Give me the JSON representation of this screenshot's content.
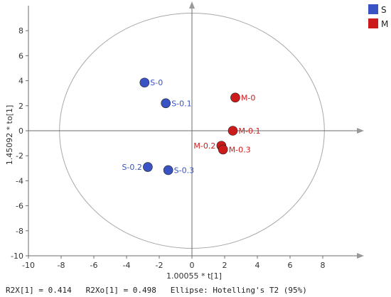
{
  "chart_data": {
    "type": "scatter",
    "xlabel": "1.00055 * t[1]",
    "ylabel": "1.45092 * to[1]",
    "xlim": [
      -10,
      10
    ],
    "ylim": [
      -10,
      10
    ],
    "x_ticks": [
      -10,
      -8,
      -6,
      -4,
      -2,
      0,
      2,
      4,
      6,
      8
    ],
    "y_ticks": [
      -10,
      -8,
      -6,
      -4,
      -2,
      0,
      2,
      4,
      6,
      8
    ],
    "ellipse": {
      "cx": 0,
      "cy": 0,
      "rx": 8.1,
      "ry": 9.4
    },
    "series": [
      {
        "name": "S",
        "color": "#3a53c4",
        "points": [
          {
            "x": -2.9,
            "y": 3.85,
            "label": "S-0"
          },
          {
            "x": -1.6,
            "y": 2.2,
            "label": "S-0.1"
          },
          {
            "x": -2.7,
            "y": -2.9,
            "label": "S-0.2"
          },
          {
            "x": -1.45,
            "y": -3.15,
            "label": "S-0.3"
          }
        ]
      },
      {
        "name": "M",
        "color": "#cc1b1b",
        "points": [
          {
            "x": 2.65,
            "y": 2.65,
            "label": "M-0"
          },
          {
            "x": 2.5,
            "y": 0.0,
            "label": "M-0.1"
          },
          {
            "x": 1.8,
            "y": -1.2,
            "label": "M-0.2"
          },
          {
            "x": 1.9,
            "y": -1.5,
            "label": "M-0.3"
          }
        ]
      }
    ],
    "legend": [
      "S",
      "M"
    ],
    "footer": "R2X[1] = 0.414   R2Xo[1] = 0.498   Ellipse: Hotelling's T2 (95%)"
  }
}
